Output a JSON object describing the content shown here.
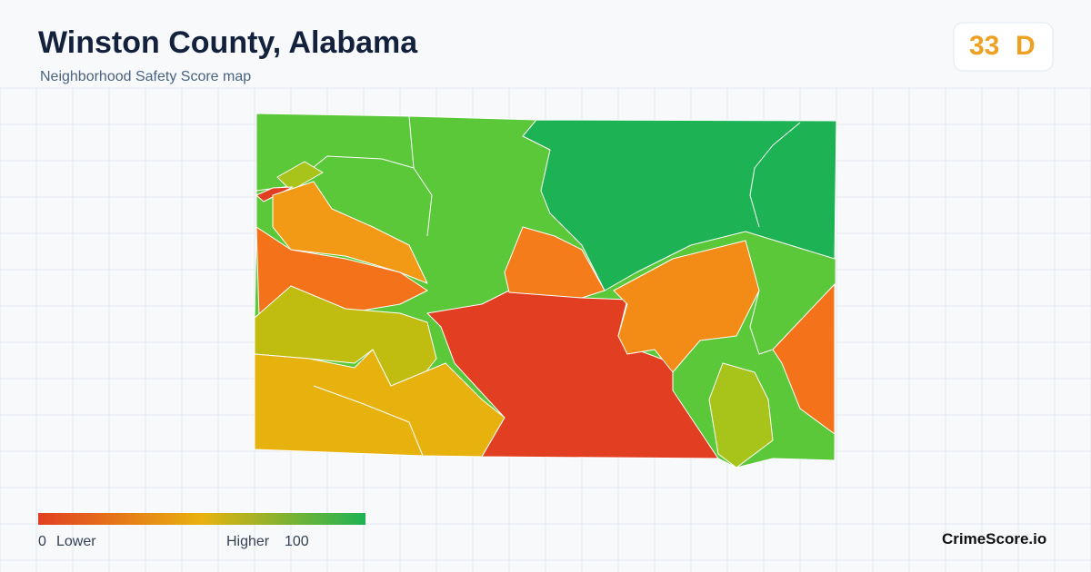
{
  "header": {
    "title": "Winston County, Alabama",
    "subtitle": "Neighborhood Safety Score map"
  },
  "score": {
    "value": "33",
    "grade": "D"
  },
  "legend": {
    "min": "0",
    "low": "Lower",
    "high": "Higher",
    "max": "100"
  },
  "brand": "CrimeScore.io"
}
